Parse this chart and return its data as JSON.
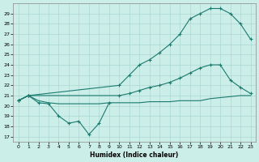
{
  "xlabel": "Humidex (Indice chaleur)",
  "bg_color": "#cceee8",
  "line_color": "#1a7a6e",
  "grid_color": "#aad8d0",
  "xlim": [
    -0.5,
    23.5
  ],
  "ylim": [
    16.5,
    30.0
  ],
  "yticks": [
    17,
    18,
    19,
    20,
    21,
    22,
    23,
    24,
    25,
    26,
    27,
    28,
    29
  ],
  "xticks": [
    0,
    1,
    2,
    3,
    4,
    5,
    6,
    7,
    8,
    9,
    10,
    11,
    12,
    13,
    14,
    15,
    16,
    17,
    18,
    19,
    20,
    21,
    22,
    23
  ],
  "line1_x": [
    0,
    1,
    2,
    3,
    4,
    5,
    6,
    7,
    8,
    9
  ],
  "line1_y": [
    20.5,
    21.0,
    20.3,
    20.2,
    19.0,
    18.3,
    18.5,
    17.2,
    18.3,
    20.3
  ],
  "line2_x": [
    0,
    1,
    2,
    3,
    4,
    5,
    6,
    7,
    8,
    9,
    10,
    11,
    12,
    13,
    14,
    15,
    16,
    17,
    18,
    19,
    20,
    21,
    22,
    23
  ],
  "line2_y": [
    20.5,
    21.0,
    20.5,
    20.3,
    20.2,
    20.2,
    20.2,
    20.2,
    20.2,
    20.3,
    20.3,
    20.3,
    20.3,
    20.4,
    20.4,
    20.4,
    20.5,
    20.5,
    20.5,
    20.7,
    20.8,
    20.9,
    21.0,
    21.0
  ],
  "line3_x": [
    0,
    1,
    10,
    11,
    12,
    13,
    14,
    15,
    16,
    17,
    18,
    19,
    20,
    21,
    22,
    23
  ],
  "line3_y": [
    20.5,
    21.0,
    22.0,
    23.0,
    24.0,
    24.5,
    25.2,
    26.0,
    27.0,
    28.5,
    29.0,
    29.5,
    29.5,
    29.0,
    28.0,
    26.5
  ],
  "line4_x": [
    0,
    1,
    10,
    11,
    12,
    13,
    14,
    15,
    16,
    17,
    18,
    19,
    20,
    21,
    22,
    23
  ],
  "line4_y": [
    20.5,
    21.0,
    21.0,
    21.2,
    21.5,
    21.8,
    22.0,
    22.3,
    22.7,
    23.2,
    23.7,
    24.0,
    24.0,
    22.5,
    21.8,
    21.2
  ]
}
